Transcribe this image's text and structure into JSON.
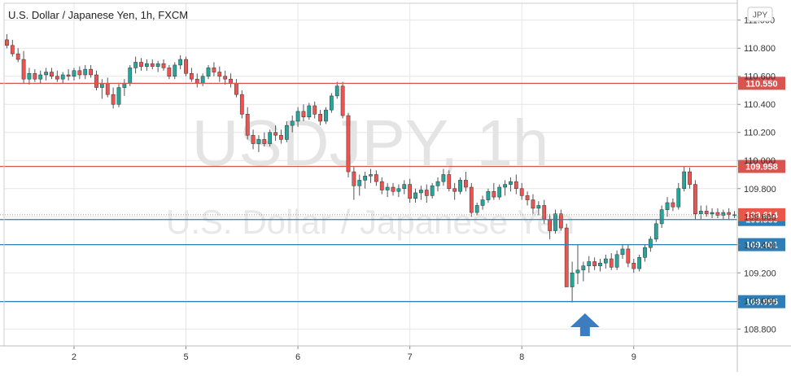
{
  "title": "U.S. Dollar / Japanese Yen, 1h, FXCM",
  "currency_badge": "JPY",
  "watermark": {
    "main": "USDJPY, 1h",
    "sub": "U.S. Dollar / Japanese Yen"
  },
  "colors": {
    "bull": "#26a69a",
    "bear": "#ef5350",
    "wick": "#555555",
    "resistance": "#d9534f",
    "support": "#2e7db5",
    "price": "#e8584a",
    "arrow": "#3b7dc0",
    "grid": "#e6e6e6"
  },
  "chart_data": {
    "type": "candlestick",
    "title": "U.S. Dollar / Japanese Yen, 1h, FXCM",
    "symbol": "USDJPY",
    "timeframe": "1h",
    "source": "FXCM",
    "ylim": [
      108.68,
      111.12
    ],
    "y_ticks": [
      "111.000",
      "110.800",
      "110.600",
      "110.400",
      "110.200",
      "110.000",
      "109.800",
      "109.600",
      "109.400",
      "109.200",
      "109.000",
      "108.800"
    ],
    "x_ticks": [
      "2",
      "5",
      "6",
      "7",
      "8",
      "9"
    ],
    "x_tick_index": [
      12,
      32,
      52,
      72,
      92,
      112
    ],
    "bar_count": 131,
    "grid": true,
    "levels": [
      {
        "value": 110.55,
        "label": "110.550",
        "kind": "resistance"
      },
      {
        "value": 109.958,
        "label": "109.958",
        "kind": "resistance"
      },
      {
        "value": 109.58,
        "label": "109.580",
        "kind": "support"
      },
      {
        "value": 109.401,
        "label": "109.401",
        "kind": "support"
      },
      {
        "value": 108.995,
        "label": "108.995",
        "kind": "support"
      }
    ],
    "last_price": {
      "value": 109.614,
      "label": "109.614"
    },
    "annotation": {
      "type": "up-arrow",
      "bar_index": 103
    },
    "series": [
      {
        "name": "USDJPY",
        "points": [
          [
            110.86,
            110.9,
            110.8,
            110.82
          ],
          [
            110.82,
            110.86,
            110.74,
            110.76
          ],
          [
            110.76,
            110.8,
            110.7,
            110.72
          ],
          [
            110.72,
            110.78,
            110.55,
            110.58
          ],
          [
            110.58,
            110.66,
            110.54,
            110.62
          ],
          [
            110.62,
            110.65,
            110.56,
            110.58
          ],
          [
            110.58,
            110.64,
            110.55,
            110.61
          ],
          [
            110.61,
            110.66,
            110.57,
            110.63
          ],
          [
            110.63,
            110.66,
            110.58,
            110.6
          ],
          [
            110.6,
            110.64,
            110.56,
            110.58
          ],
          [
            110.58,
            110.63,
            110.55,
            110.61
          ],
          [
            110.61,
            110.65,
            110.57,
            110.6
          ],
          [
            110.6,
            110.66,
            110.57,
            110.64
          ],
          [
            110.64,
            110.67,
            110.58,
            110.61
          ],
          [
            110.61,
            110.68,
            110.58,
            110.65
          ],
          [
            110.65,
            110.68,
            110.59,
            110.61
          ],
          [
            110.61,
            110.64,
            110.5,
            110.52
          ],
          [
            110.52,
            110.58,
            110.44,
            110.55
          ],
          [
            110.55,
            110.59,
            110.45,
            110.47
          ],
          [
            110.47,
            110.52,
            110.37,
            110.4
          ],
          [
            110.4,
            110.55,
            110.38,
            110.52
          ],
          [
            110.52,
            110.58,
            110.46,
            110.55
          ],
          [
            110.55,
            110.68,
            110.53,
            110.66
          ],
          [
            110.66,
            110.74,
            110.62,
            110.7
          ],
          [
            110.7,
            110.73,
            110.64,
            110.67
          ],
          [
            110.67,
            110.72,
            110.64,
            110.69
          ],
          [
            110.69,
            110.72,
            110.65,
            110.67
          ],
          [
            110.67,
            110.71,
            110.63,
            110.69
          ],
          [
            110.69,
            110.72,
            110.64,
            110.66
          ],
          [
            110.66,
            110.68,
            110.58,
            110.6
          ],
          [
            110.6,
            110.7,
            110.58,
            110.68
          ],
          [
            110.68,
            110.75,
            110.65,
            110.72
          ],
          [
            110.72,
            110.74,
            110.6,
            110.62
          ],
          [
            110.62,
            110.66,
            110.56,
            110.58
          ],
          [
            110.58,
            110.62,
            110.52,
            110.55
          ],
          [
            110.55,
            110.62,
            110.53,
            110.6
          ],
          [
            110.6,
            110.68,
            110.58,
            110.66
          ],
          [
            110.66,
            110.7,
            110.6,
            110.63
          ],
          [
            110.63,
            110.67,
            110.56,
            110.6
          ],
          [
            110.6,
            110.64,
            110.54,
            110.58
          ],
          [
            110.58,
            110.62,
            110.52,
            110.55
          ],
          [
            110.55,
            110.58,
            110.45,
            110.47
          ],
          [
            110.47,
            110.5,
            110.3,
            110.33
          ],
          [
            110.33,
            110.38,
            110.15,
            110.18
          ],
          [
            110.18,
            110.22,
            110.08,
            110.12
          ],
          [
            110.12,
            110.18,
            110.06,
            110.15
          ],
          [
            110.15,
            110.2,
            110.1,
            110.12
          ],
          [
            110.12,
            110.22,
            110.1,
            110.2
          ],
          [
            110.2,
            110.25,
            110.14,
            110.18
          ],
          [
            110.18,
            110.22,
            110.12,
            110.15
          ],
          [
            110.15,
            110.28,
            110.13,
            110.25
          ],
          [
            110.25,
            110.32,
            110.2,
            110.28
          ],
          [
            110.28,
            110.38,
            110.24,
            110.35
          ],
          [
            110.35,
            110.4,
            110.28,
            110.31
          ],
          [
            110.31,
            110.41,
            110.29,
            110.39
          ],
          [
            110.39,
            110.42,
            110.3,
            110.33
          ],
          [
            110.33,
            110.36,
            110.25,
            110.28
          ],
          [
            110.28,
            110.38,
            110.26,
            110.36
          ],
          [
            110.36,
            110.48,
            110.34,
            110.46
          ],
          [
            110.46,
            110.56,
            110.44,
            110.53
          ],
          [
            110.53,
            110.56,
            110.3,
            110.32
          ],
          [
            110.32,
            110.34,
            109.88,
            109.92
          ],
          [
            109.92,
            109.96,
            109.72,
            109.82
          ],
          [
            109.82,
            109.9,
            109.75,
            109.86
          ],
          [
            109.86,
            109.92,
            109.8,
            109.89
          ],
          [
            109.89,
            109.94,
            109.84,
            109.9
          ],
          [
            109.9,
            109.93,
            109.82,
            109.85
          ],
          [
            109.85,
            109.88,
            109.76,
            109.79
          ],
          [
            109.79,
            109.84,
            109.74,
            109.81
          ],
          [
            109.81,
            109.84,
            109.75,
            109.78
          ],
          [
            109.78,
            109.83,
            109.74,
            109.8
          ],
          [
            109.8,
            109.86,
            109.76,
            109.83
          ],
          [
            109.83,
            109.87,
            109.7,
            109.73
          ],
          [
            109.73,
            109.8,
            109.7,
            109.77
          ],
          [
            109.77,
            109.82,
            109.72,
            109.79
          ],
          [
            109.79,
            109.83,
            109.7,
            109.75
          ],
          [
            109.75,
            109.84,
            109.73,
            109.82
          ],
          [
            109.82,
            109.88,
            109.78,
            109.85
          ],
          [
            109.85,
            109.94,
            109.82,
            109.9
          ],
          [
            109.9,
            109.93,
            109.78,
            109.8
          ],
          [
            109.8,
            109.84,
            109.72,
            109.78
          ],
          [
            109.78,
            109.88,
            109.76,
            109.86
          ],
          [
            109.86,
            109.92,
            109.78,
            109.81
          ],
          [
            109.81,
            109.84,
            109.6,
            109.63
          ],
          [
            109.63,
            109.7,
            109.61,
            109.68
          ],
          [
            109.68,
            109.75,
            109.65,
            109.72
          ],
          [
            109.72,
            109.8,
            109.7,
            109.78
          ],
          [
            109.78,
            109.84,
            109.72,
            109.74
          ],
          [
            109.74,
            109.83,
            109.72,
            109.81
          ],
          [
            109.81,
            109.86,
            109.75,
            109.83
          ],
          [
            109.83,
            109.88,
            109.78,
            109.85
          ],
          [
            109.85,
            109.9,
            109.76,
            109.8
          ],
          [
            109.8,
            109.84,
            109.72,
            109.75
          ],
          [
            109.75,
            109.78,
            109.68,
            109.72
          ],
          [
            109.72,
            109.76,
            109.62,
            109.66
          ],
          [
            109.66,
            109.71,
            109.61,
            109.68
          ],
          [
            109.68,
            109.72,
            109.55,
            109.58
          ],
          [
            109.58,
            109.62,
            109.44,
            109.5
          ],
          [
            109.5,
            109.65,
            109.48,
            109.62
          ],
          [
            109.62,
            109.65,
            109.5,
            109.52
          ],
          [
            109.52,
            109.55,
            109.2,
            109.1
          ],
          [
            109.1,
            109.28,
            108.99,
            109.2
          ],
          [
            109.2,
            109.4,
            109.12,
            109.22
          ],
          [
            109.22,
            109.28,
            109.14,
            109.25
          ],
          [
            109.25,
            109.32,
            109.2,
            109.28
          ],
          [
            109.28,
            109.31,
            109.22,
            109.25
          ],
          [
            109.25,
            109.3,
            109.21,
            109.27
          ],
          [
            109.27,
            109.33,
            109.23,
            109.3
          ],
          [
            109.3,
            109.34,
            109.22,
            109.24
          ],
          [
            109.24,
            109.36,
            109.22,
            109.33
          ],
          [
            109.33,
            109.4,
            109.3,
            109.37
          ],
          [
            109.37,
            109.4,
            109.24,
            109.27
          ],
          [
            109.27,
            109.3,
            109.2,
            109.23
          ],
          [
            109.23,
            109.33,
            109.21,
            109.31
          ],
          [
            109.31,
            109.4,
            109.28,
            109.38
          ],
          [
            109.38,
            109.46,
            109.35,
            109.44
          ],
          [
            109.44,
            109.58,
            109.42,
            109.55
          ],
          [
            109.55,
            109.68,
            109.52,
            109.65
          ],
          [
            109.65,
            109.74,
            109.6,
            109.7
          ],
          [
            109.7,
            109.73,
            109.64,
            109.67
          ],
          [
            109.67,
            109.84,
            109.65,
            109.8
          ],
          [
            109.8,
            109.96,
            109.78,
            109.92
          ],
          [
            109.92,
            109.95,
            109.8,
            109.83
          ],
          [
            109.83,
            109.86,
            109.58,
            109.62
          ],
          [
            109.62,
            109.68,
            109.58,
            109.64
          ],
          [
            109.64,
            109.68,
            109.6,
            109.62
          ],
          [
            109.62,
            109.66,
            109.59,
            109.63
          ],
          [
            109.63,
            109.66,
            109.59,
            109.61
          ],
          [
            109.61,
            109.65,
            109.58,
            109.63
          ],
          [
            109.63,
            109.66,
            109.58,
            109.614
          ],
          [
            109.614,
            109.64,
            109.59,
            109.614
          ]
        ]
      }
    ]
  }
}
